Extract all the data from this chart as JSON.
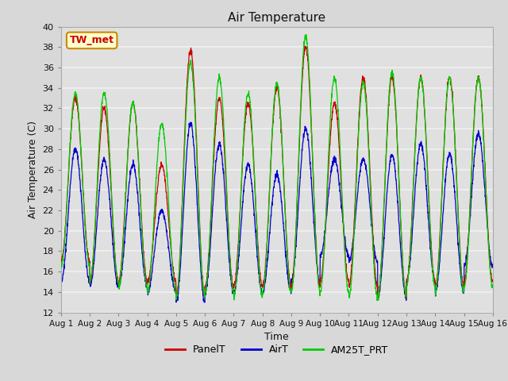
{
  "title": "Air Temperature",
  "xlabel": "Time",
  "ylabel": "Air Temperature (C)",
  "ylim": [
    12,
    40
  ],
  "yticks": [
    12,
    14,
    16,
    18,
    20,
    22,
    24,
    26,
    28,
    30,
    32,
    34,
    36,
    38,
    40
  ],
  "fig_bg_color": "#d8d8d8",
  "plot_bg_color": "#e0e0e0",
  "grid_color": "#f0f0f0",
  "legend_labels": [
    "PanelT",
    "AirT",
    "AM25T_PRT"
  ],
  "legend_colors": [
    "#cc0000",
    "#0000cc",
    "#00cc00"
  ],
  "annotation_text": "TW_met",
  "annotation_color": "#cc0000",
  "annotation_bg": "#ffffcc",
  "annotation_border": "#cc8800",
  "n_days": 15,
  "points_per_day": 144,
  "seed": 42
}
